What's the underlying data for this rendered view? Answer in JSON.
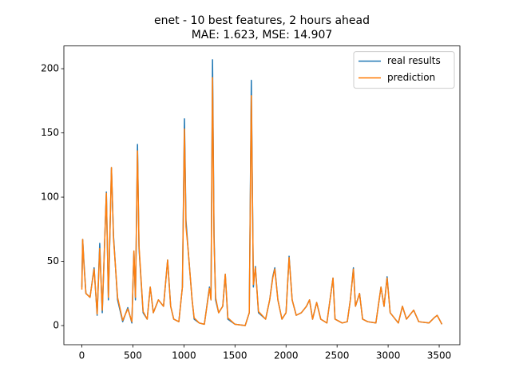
{
  "chart_data": {
    "type": "line",
    "title": "enet - 10 best features, 2 hours ahead",
    "subtitle": "MAE: 1.623, MSE: 14.907",
    "x": [
      0,
      8,
      20,
      40,
      80,
      120,
      150,
      175,
      200,
      240,
      260,
      290,
      310,
      350,
      400,
      450,
      490,
      510,
      525,
      545,
      560,
      600,
      640,
      670,
      700,
      750,
      800,
      840,
      870,
      900,
      950,
      985,
      1005,
      1020,
      1040,
      1080,
      1100,
      1150,
      1200,
      1250,
      1265,
      1280,
      1295,
      1310,
      1340,
      1380,
      1405,
      1430,
      1500,
      1600,
      1640,
      1660,
      1680,
      1700,
      1730,
      1800,
      1840,
      1870,
      1890,
      1920,
      1960,
      2000,
      2030,
      2060,
      2100,
      2150,
      2200,
      2230,
      2260,
      2300,
      2340,
      2400,
      2460,
      2480,
      2550,
      2600,
      2630,
      2660,
      2680,
      2720,
      2750,
      2800,
      2880,
      2930,
      2960,
      2990,
      3020,
      3100,
      3140,
      3180,
      3250,
      3300,
      3400,
      3450,
      3480,
      3527
    ],
    "series": [
      {
        "name": "real results",
        "color": "#1f77b4",
        "values": [
          30,
          67,
          50,
          25,
          22,
          45,
          8,
          64,
          10,
          104,
          20,
          123,
          70,
          20,
          3,
          14,
          2,
          58,
          20,
          141,
          60,
          10,
          5,
          30,
          10,
          20,
          15,
          51,
          15,
          5,
          3,
          30,
          161,
          82,
          60,
          20,
          5,
          2,
          1,
          30,
          20,
          207,
          70,
          20,
          10,
          15,
          40,
          5,
          1,
          0,
          10,
          191,
          30,
          46,
          10,
          5,
          20,
          38,
          45,
          20,
          5,
          10,
          54,
          20,
          8,
          10,
          15,
          20,
          5,
          18,
          5,
          2,
          37,
          5,
          2,
          3,
          20,
          45,
          15,
          25,
          5,
          3,
          2,
          30,
          15,
          38,
          10,
          2,
          15,
          5,
          12,
          3,
          2,
          6,
          8,
          1
        ]
      },
      {
        "name": "prediction",
        "color": "#ff7f0e",
        "values": [
          28,
          67,
          48,
          25,
          22,
          44,
          9,
          60,
          12,
          103,
          22,
          123,
          68,
          22,
          4,
          13,
          3,
          58,
          22,
          136,
          62,
          11,
          5,
          30,
          10,
          20,
          15,
          51,
          15,
          5,
          3,
          30,
          153,
          77,
          60,
          20,
          6,
          2,
          1,
          29,
          20,
          193,
          65,
          22,
          10,
          15,
          40,
          6,
          1,
          0,
          10,
          179,
          32,
          45,
          11,
          5,
          20,
          37,
          44,
          20,
          5,
          10,
          53,
          20,
          8,
          10,
          15,
          20,
          5,
          18,
          5,
          2,
          37,
          5,
          2,
          3,
          20,
          44,
          15,
          25,
          5,
          3,
          2,
          30,
          15,
          37,
          10,
          2,
          15,
          5,
          12,
          3,
          2,
          6,
          8,
          1
        ]
      }
    ],
    "xlim": [
      -176,
      3703
    ],
    "ylim": [
      -14.9,
      217.7
    ],
    "xticks": [
      0,
      500,
      1000,
      1500,
      2000,
      2500,
      3000,
      3500
    ],
    "yticks": [
      0,
      50,
      100,
      150,
      200
    ],
    "legend": "upper right"
  }
}
